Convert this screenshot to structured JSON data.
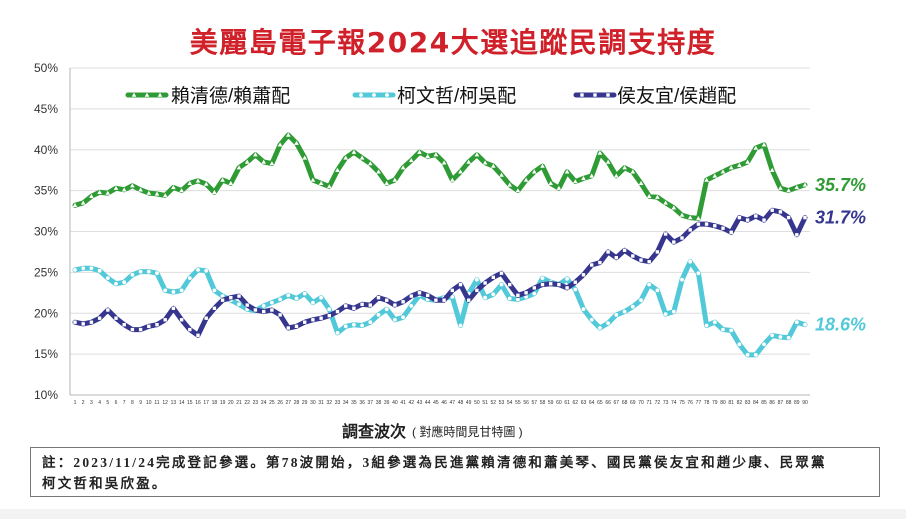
{
  "colors": {
    "title": "#d0212a",
    "axis": "#b5b5b5",
    "grid": "#dedede"
  },
  "chart_data": {
    "type": "line",
    "title": "美麗島電子報2024大選追蹤民調支持度",
    "xlabel": "調查波次",
    "xlabel_note": "( 對應時間見甘特圖 )",
    "ylim": [
      10,
      50
    ],
    "yticks": [
      "10%",
      "15%",
      "20%",
      "25%",
      "30%",
      "35%",
      "40%",
      "45%",
      "50%"
    ],
    "grid": true,
    "legend": "top",
    "x": [
      1,
      2,
      3,
      4,
      5,
      6,
      7,
      8,
      9,
      10,
      11,
      12,
      13,
      14,
      15,
      16,
      17,
      18,
      19,
      20,
      21,
      22,
      23,
      24,
      25,
      26,
      27,
      28,
      29,
      30,
      31,
      32,
      33,
      34,
      35,
      36,
      37,
      38,
      39,
      40,
      41,
      42,
      43,
      44,
      45,
      46,
      47,
      48,
      49,
      50,
      51,
      52,
      53,
      54,
      55,
      56,
      57,
      58,
      59,
      60,
      61,
      62,
      63,
      64,
      65,
      66,
      67,
      68,
      69,
      70,
      71,
      72,
      73,
      74,
      75,
      76,
      77,
      78,
      79,
      80,
      81,
      82,
      83,
      84,
      85,
      86,
      87,
      88,
      89,
      90
    ],
    "series": [
      {
        "name": "賴清德/賴蕭配",
        "color": "#2f9b35",
        "end_label": "35.7%",
        "values": [
          33.2,
          33.5,
          34.3,
          34.8,
          34.7,
          35.3,
          35.1,
          35.6,
          35.1,
          34.7,
          34.6,
          34.4,
          35.4,
          35.0,
          35.9,
          36.2,
          35.8,
          34.8,
          36.3,
          35.9,
          37.8,
          38.5,
          39.4,
          38.5,
          38.3,
          40.6,
          41.8,
          40.8,
          39.0,
          36.3,
          35.9,
          35.5,
          37.5,
          39.0,
          39.7,
          39.0,
          38.3,
          37.3,
          35.9,
          36.3,
          37.8,
          38.7,
          39.7,
          39.2,
          39.4,
          38.4,
          36.3,
          37.3,
          38.5,
          39.4,
          38.4,
          38.0,
          36.9,
          35.7,
          35.0,
          36.3,
          37.3,
          38.0,
          35.9,
          35.3,
          37.3,
          36.1,
          36.5,
          36.8,
          39.6,
          38.5,
          36.8,
          37.8,
          37.3,
          35.9,
          34.3,
          34.2,
          33.5,
          32.9,
          32.0,
          31.7,
          31.6,
          36.3,
          36.8,
          37.3,
          37.8,
          38.1,
          38.5,
          40.2,
          40.6,
          37.5,
          35.3,
          35.0,
          35.4,
          35.7
        ]
      },
      {
        "name": "柯文哲/柯吳配",
        "color": "#52c9d8",
        "end_label": "18.6%",
        "values": [
          25.3,
          25.5,
          25.5,
          25.2,
          24.3,
          23.6,
          23.8,
          24.7,
          25.1,
          25.1,
          24.9,
          22.8,
          22.6,
          22.8,
          24.3,
          25.3,
          25.2,
          22.8,
          22.1,
          21.6,
          21.1,
          20.5,
          20.3,
          20.9,
          21.3,
          21.7,
          22.2,
          21.8,
          22.4,
          21.3,
          21.9,
          20.5,
          17.6,
          18.4,
          18.6,
          18.5,
          18.9,
          19.8,
          20.5,
          19.2,
          19.5,
          20.9,
          22.2,
          21.7,
          21.6,
          21.9,
          22.0,
          18.5,
          22.4,
          24.1,
          21.9,
          22.3,
          23.5,
          21.8,
          21.7,
          22.0,
          22.4,
          24.3,
          23.8,
          23.5,
          24.2,
          22.9,
          20.5,
          19.2,
          18.2,
          18.8,
          19.8,
          20.2,
          20.8,
          21.6,
          23.5,
          22.8,
          19.9,
          20.2,
          24.1,
          26.3,
          24.9,
          18.5,
          18.9,
          18.0,
          17.9,
          16.2,
          14.9,
          14.9,
          16.2,
          17.3,
          17.1,
          17.0,
          18.9,
          18.6
        ]
      },
      {
        "name": "侯友宜/侯趙配",
        "color": "#36368f",
        "end_label": "31.7%",
        "values": [
          18.9,
          18.7,
          18.9,
          19.4,
          20.4,
          19.4,
          18.6,
          18.0,
          18.0,
          18.4,
          18.6,
          19.2,
          20.6,
          19.2,
          18.0,
          17.3,
          19.4,
          20.6,
          21.6,
          21.9,
          22.1,
          21.0,
          20.4,
          20.2,
          20.4,
          19.8,
          18.2,
          18.4,
          18.9,
          19.2,
          19.4,
          19.7,
          20.2,
          20.9,
          20.6,
          21.1,
          21.0,
          21.9,
          21.6,
          21.0,
          21.4,
          22.1,
          22.5,
          22.2,
          21.6,
          21.6,
          22.8,
          23.5,
          21.6,
          22.8,
          23.7,
          24.4,
          24.9,
          23.5,
          22.2,
          22.5,
          23.1,
          23.5,
          23.6,
          23.5,
          23.1,
          23.8,
          24.7,
          25.9,
          26.2,
          27.5,
          26.8,
          27.7,
          27.0,
          26.5,
          26.3,
          27.5,
          29.7,
          28.7,
          29.2,
          30.2,
          30.9,
          30.9,
          30.7,
          30.4,
          29.9,
          31.7,
          31.4,
          31.9,
          31.4,
          32.6,
          32.4,
          31.7,
          29.6,
          31.7
        ]
      }
    ]
  },
  "note": [
    "註：2023/11/24完成登記參選。第78波開始，3組參選為民進黨賴清德和蕭美琴、國民黨侯友宜和趙少康、民眾黨",
    "柯文哲和吳欣盈。"
  ]
}
